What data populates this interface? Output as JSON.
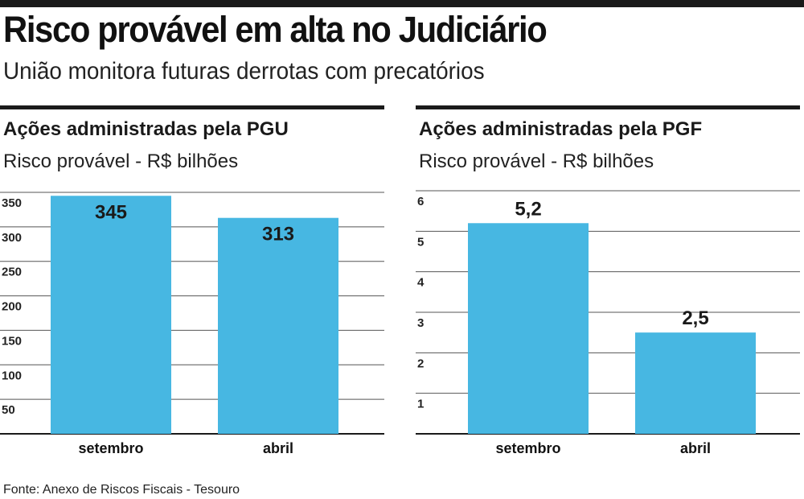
{
  "title": "Risco provável em alta no Judiciário",
  "subtitle": "União monitora futuras derrotas com precatórios",
  "source": "Fonte: Anexo de Riscos Fiscais - Tesouro",
  "colors": {
    "bar": "#47b7e2",
    "grid": "#555555",
    "rule": "#1a1a1a"
  },
  "chart_data": [
    {
      "type": "bar",
      "title": "Ações administradas pela PGU",
      "subtitle": "Risco provável - R$ bilhões",
      "categories": [
        "setembro",
        "abril"
      ],
      "values": [
        345,
        313
      ],
      "value_labels": [
        "345",
        "313"
      ],
      "yticks": [
        50,
        100,
        150,
        200,
        250,
        300,
        350
      ],
      "ytick_labels": [
        "50",
        "100",
        "150",
        "200",
        "250",
        "300",
        "350"
      ],
      "ylim": [
        0,
        350
      ],
      "grid": true,
      "xlabel": "",
      "ylabel": ""
    },
    {
      "type": "bar",
      "title": "Ações administradas pela PGF",
      "subtitle": "Risco provável - R$ bilhões",
      "categories": [
        "setembro",
        "abril"
      ],
      "values": [
        5.2,
        2.5
      ],
      "value_labels": [
        "5,2",
        "2,5"
      ],
      "yticks": [
        1,
        2,
        3,
        4,
        5,
        6
      ],
      "ytick_labels": [
        "1",
        "2",
        "3",
        "4",
        "5",
        "6"
      ],
      "ylim": [
        0,
        6
      ],
      "grid": true,
      "xlabel": "",
      "ylabel": ""
    }
  ]
}
